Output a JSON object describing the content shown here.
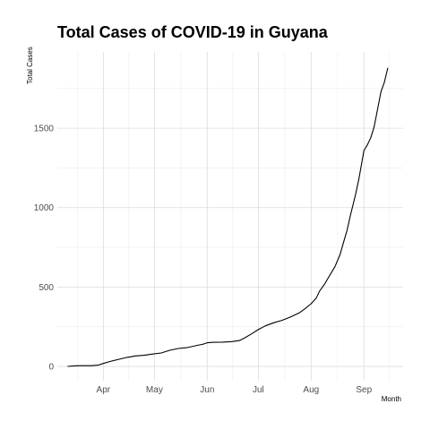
{
  "chart_data": {
    "type": "line",
    "title": "Total Cases of COVID-19 in Guyana",
    "xlabel": "Month",
    "ylabel": "Total Cases",
    "grid": true,
    "x_tick_labels": [
      "Apr",
      "May",
      "Jun",
      "Jul",
      "Aug",
      "Sep"
    ],
    "x_ticks": [
      "2020-04-01",
      "2020-05-01",
      "2020-06-01",
      "2020-07-01",
      "2020-08-01",
      "2020-09-01"
    ],
    "y_ticks": [
      0,
      500,
      1000,
      1500
    ],
    "xlim": [
      "2020-03-05",
      "2020-09-24"
    ],
    "ylim": [
      -90,
      1980
    ],
    "series": [
      {
        "points": [
          [
            "2020-03-11",
            0
          ],
          [
            "2020-03-16",
            4
          ],
          [
            "2020-03-20",
            5
          ],
          [
            "2020-03-25",
            5
          ],
          [
            "2020-03-29",
            8
          ],
          [
            "2020-04-01",
            19
          ],
          [
            "2020-04-05",
            31
          ],
          [
            "2020-04-10",
            45
          ],
          [
            "2020-04-15",
            57
          ],
          [
            "2020-04-20",
            66
          ],
          [
            "2020-04-25",
            70
          ],
          [
            "2020-04-30",
            78
          ],
          [
            "2020-05-05",
            85
          ],
          [
            "2020-05-10",
            102
          ],
          [
            "2020-05-15",
            113
          ],
          [
            "2020-05-20",
            118
          ],
          [
            "2020-05-25",
            130
          ],
          [
            "2020-05-30",
            141
          ],
          [
            "2020-06-01",
            149
          ],
          [
            "2020-06-05",
            152
          ],
          [
            "2020-06-10",
            153
          ],
          [
            "2020-06-15",
            156
          ],
          [
            "2020-06-20",
            163
          ],
          [
            "2020-06-23",
            180
          ],
          [
            "2020-06-27",
            205
          ],
          [
            "2020-07-01",
            232
          ],
          [
            "2020-07-05",
            255
          ],
          [
            "2020-07-10",
            275
          ],
          [
            "2020-07-15",
            291
          ],
          [
            "2020-07-20",
            312
          ],
          [
            "2020-07-25",
            337
          ],
          [
            "2020-07-28",
            360
          ],
          [
            "2020-08-01",
            395
          ],
          [
            "2020-08-04",
            430
          ],
          [
            "2020-08-06",
            475
          ],
          [
            "2020-08-09",
            520
          ],
          [
            "2020-08-12",
            575
          ],
          [
            "2020-08-15",
            628
          ],
          [
            "2020-08-18",
            705
          ],
          [
            "2020-08-20",
            780
          ],
          [
            "2020-08-22",
            855
          ],
          [
            "2020-08-24",
            950
          ],
          [
            "2020-08-27",
            1080
          ],
          [
            "2020-08-29",
            1180
          ],
          [
            "2020-09-01",
            1360
          ],
          [
            "2020-09-03",
            1395
          ],
          [
            "2020-09-05",
            1440
          ],
          [
            "2020-09-07",
            1510
          ],
          [
            "2020-09-09",
            1620
          ],
          [
            "2020-09-11",
            1730
          ],
          [
            "2020-09-13",
            1790
          ],
          [
            "2020-09-15",
            1880
          ]
        ]
      }
    ]
  }
}
